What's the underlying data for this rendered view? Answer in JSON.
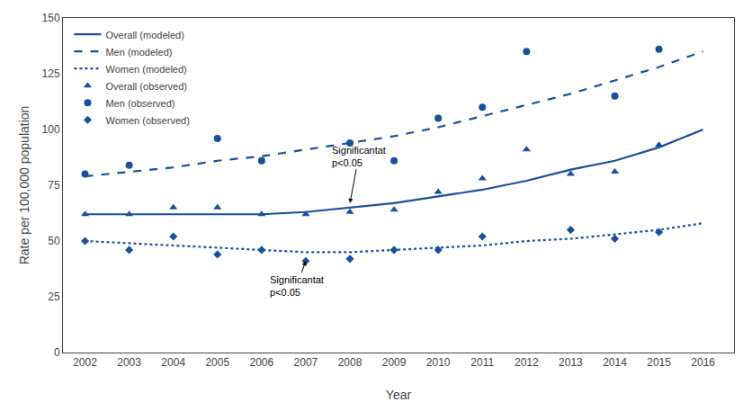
{
  "chart_data": {
    "type": "line",
    "x": [
      2002,
      2003,
      2004,
      2005,
      2006,
      2007,
      2008,
      2009,
      2010,
      2011,
      2012,
      2013,
      2014,
      2015,
      2016
    ],
    "series": [
      {
        "name": "Overall (modeled)",
        "type": "line",
        "line_style": "solid",
        "color": "#1a4f9c",
        "values": [
          62,
          62,
          62,
          62,
          62,
          63,
          65,
          67,
          70,
          73,
          77,
          82,
          86,
          92,
          100
        ]
      },
      {
        "name": "Men (modeled)",
        "type": "line",
        "line_style": "dashed",
        "color": "#1a4f9c",
        "values": [
          79,
          81,
          83,
          86,
          88,
          91,
          94,
          97,
          101,
          106,
          111,
          116,
          122,
          128,
          135
        ]
      },
      {
        "name": "Women (modeled)",
        "type": "line",
        "line_style": "dotted",
        "color": "#1a4f9c",
        "values": [
          50,
          49,
          48,
          47,
          46,
          45,
          45,
          46,
          47,
          48,
          50,
          51,
          53,
          55,
          58
        ]
      },
      {
        "name": "Overall (observed)",
        "type": "scatter",
        "marker": "triangle",
        "color": "#1a4f9c",
        "values": [
          62,
          62,
          65,
          65,
          62,
          62,
          63,
          64,
          72,
          78,
          91,
          80,
          81,
          93,
          null
        ]
      },
      {
        "name": "Men (observed)",
        "type": "scatter",
        "marker": "circle",
        "color": "#1a4f9c",
        "values": [
          80,
          84,
          null,
          96,
          86,
          null,
          94,
          86,
          105,
          110,
          135,
          null,
          115,
          136,
          null
        ]
      },
      {
        "name": "Women (observed)",
        "type": "scatter",
        "marker": "diamond",
        "color": "#1a4f9c",
        "values": [
          50,
          46,
          52,
          44,
          46,
          41,
          42,
          46,
          46,
          52,
          null,
          55,
          51,
          54,
          null
        ]
      }
    ],
    "annotations": [
      {
        "text": "Significantat\np<0.05",
        "x": 2008.0,
        "y": 67,
        "text_x": 2008.2,
        "text_y": 88
      },
      {
        "text": "Significantat\np<0.05",
        "x": 2007.0,
        "y": 41,
        "text_x": 2006.8,
        "text_y": 30
      }
    ],
    "xlabel": "Year",
    "ylabel": "Rate per 100,000 population",
    "xlim": [
      2001.5,
      2016.7
    ],
    "xticks": [
      2002,
      2003,
      2004,
      2005,
      2006,
      2007,
      2008,
      2009,
      2010,
      2011,
      2012,
      2013,
      2014,
      2015,
      2016
    ],
    "ylim": [
      0,
      150
    ],
    "yticks": [
      0,
      25,
      50,
      75,
      100,
      125,
      150
    ],
    "grid": false,
    "legend": "upper left"
  }
}
